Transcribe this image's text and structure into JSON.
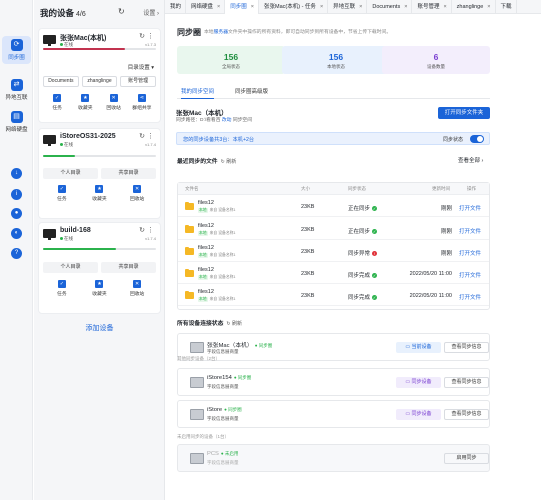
{
  "rail": {
    "items": [
      {
        "label": "同步圈",
        "icon": "sync-circle-icon"
      },
      {
        "label": "异地互联",
        "icon": "remote-link-icon"
      },
      {
        "label": "网络硬盘",
        "icon": "network-disk-icon"
      }
    ]
  },
  "devices_panel": {
    "title": "我的设备",
    "count": "4/6",
    "settings_label": "设置",
    "add_device_label": "添加设备",
    "devices": [
      {
        "name": "张张Mac(本机)",
        "status": "在线",
        "version": "v1.7.3",
        "bar_fill_fraction": 0.73,
        "bar_color": "#c2334f",
        "dir_label": "目录设置",
        "tags": [
          "Documents",
          "zhanglinge",
          "账号管理"
        ],
        "actions": [
          "任务",
          "收藏夹",
          "回收站",
          "群组共享"
        ]
      },
      {
        "name": "iStoreOS31-2025",
        "status": "在线",
        "version": "v1.7.4",
        "bar_fill_fraction": 0.28,
        "bar_color": "#2bb24c",
        "tags": [
          "个人目录",
          "共享目录"
        ],
        "actions": [
          "任务",
          "收藏夹",
          "回收站"
        ]
      },
      {
        "name": "build-168",
        "status": "在线",
        "version": "v1.7.4",
        "bar_fill_fraction": 0.65,
        "bar_color": "#2bb24c",
        "tags": [
          "个人目录",
          "共享目录"
        ],
        "actions": [
          "任务",
          "收藏夹",
          "回收站"
        ]
      }
    ]
  },
  "tabs": [
    {
      "label": "我的",
      "closable": false,
      "active": false
    },
    {
      "label": "网络硬盘",
      "closable": true,
      "active": false
    },
    {
      "label": "同步圈",
      "closable": true,
      "active": true
    },
    {
      "label": "张张Mac(本机) - 任务",
      "closable": true,
      "active": false
    },
    {
      "label": "异地互联",
      "closable": true,
      "active": false
    },
    {
      "label": "Documents",
      "closable": true,
      "active": false
    },
    {
      "label": "账号管理",
      "closable": true,
      "active": false
    },
    {
      "label": "zhanglinge",
      "closable": true,
      "active": false
    },
    {
      "label": "下载",
      "closable": false,
      "active": false
    }
  ],
  "main": {
    "title": "同步圈",
    "subtitle_pre": "本地",
    "subtitle_link": "服务器",
    "subtitle_post": "文件夹中操作的所有资料，即可自动同步到所有设备中，节省上传下载时间。",
    "stats": [
      {
        "value": "156",
        "label": "全局状态",
        "bg": "#e9f7ee",
        "color": "#1f8f3f"
      },
      {
        "value": "156",
        "label": "本地状态",
        "bg": "#e8f1fd",
        "color": "#1b64d8"
      },
      {
        "value": "6",
        "label": "设备数量",
        "bg": "#f3eefc",
        "color": "#7a3fd1"
      }
    ],
    "subtabs": [
      "我的同步空间",
      "同步圈高级版"
    ],
    "space": {
      "name": "张张Mac（本机）",
      "path_pre": "同步路径：D:\\看看百",
      "path_link": "改动",
      "path_post": "同步空间",
      "open_button": "打开同步文件夹",
      "banner_text": "您的同步设备共3台：本机+2台",
      "sync_status_label": "同步状态"
    },
    "recent": {
      "title": "最近同步的文件",
      "refresh": "刷新",
      "view_all": "查看全部",
      "columns": [
        "文件名",
        "大小",
        "同步状态",
        "更新时间",
        "操作"
      ],
      "rows": [
        {
          "name": "files12",
          "badge": "本地",
          "sub": "来自 设备名称1",
          "size": "23KB",
          "status": "正在同步",
          "status_color": "#2bb24c",
          "status_glyph": "✓",
          "time": "刚刚",
          "action": "打开文件"
        },
        {
          "name": "files12",
          "badge": "本地",
          "sub": "来自 设备名称1",
          "size": "23KB",
          "status": "正在同步",
          "status_color": "#2bb24c",
          "status_glyph": "✓",
          "time": "刚刚",
          "action": "打开文件"
        },
        {
          "name": "files12",
          "badge": "本地",
          "sub": "来自 设备名称1",
          "size": "23KB",
          "status": "同步异常",
          "status_color": "#e0323a",
          "status_glyph": "!",
          "time": "刚刚",
          "action": "打开文件"
        },
        {
          "name": "files12",
          "badge": "本地",
          "sub": "来自 设备名称1",
          "size": "23KB",
          "status": "同步完成",
          "status_color": "#2bb24c",
          "status_glyph": "✓",
          "time": "2022/05/20  11:00",
          "action": "打开文件"
        },
        {
          "name": "files12",
          "badge": "本地",
          "sub": "来自 设备名称1",
          "size": "23KB",
          "status": "同步完成",
          "status_color": "#2bb24c",
          "status_glyph": "✓",
          "time": "2022/05/20  11:00",
          "action": "打开文件"
        }
      ]
    },
    "connections": {
      "title": "所有设备连接状态",
      "refresh": "刷新",
      "group_other": "其他同步设备（2台）",
      "group_offline": "未启用同步的设备（1台）",
      "devices": [
        {
          "name": "张张Mac（本机）",
          "status": "同步圈",
          "sub": "字段信息展商量",
          "btn1": "当前设备",
          "btn2": "查看同步信息",
          "btn1_bg": "#e8f1fd",
          "btn1_color": "#1b64d8"
        },
        {
          "name": "iStore154",
          "status": "同步圈",
          "sub": "字段信息展商量",
          "btn1": "同步设备",
          "btn2": "查看同步信息",
          "btn1_bg": "#f1ecfc",
          "btn1_color": "#7a3fd1"
        },
        {
          "name": "iStore",
          "status": "同步圈",
          "sub": "字段信息展商量",
          "btn1": "同步设备",
          "btn2": "查看同步信息",
          "btn1_bg": "#f1ecfc",
          "btn1_color": "#7a3fd1"
        },
        {
          "name": "PCS",
          "status": "未启用",
          "sub": "字段信息展商量",
          "btn1": "",
          "btn2": "启用同步",
          "btn1_bg": "",
          "btn1_color": ""
        }
      ]
    }
  }
}
